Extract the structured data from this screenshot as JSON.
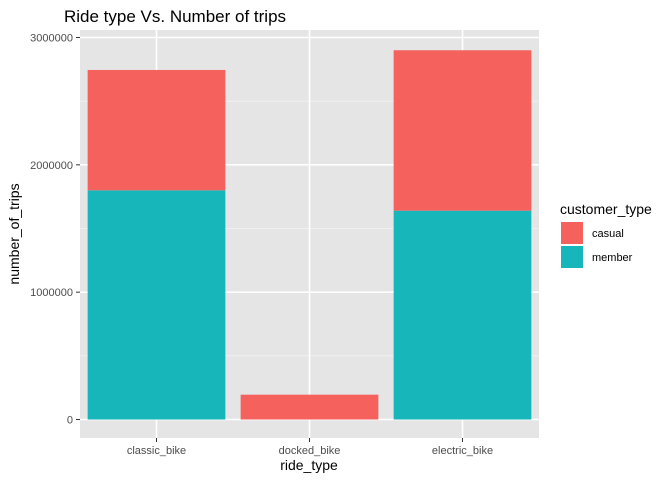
{
  "chart_data": {
    "type": "bar",
    "stacked": true,
    "title": "Ride type Vs. Number of trips",
    "xlabel": "ride_type",
    "ylabel": "number_of_trips",
    "categories": [
      "classic_bike",
      "docked_bike",
      "electric_bike"
    ],
    "series": [
      {
        "name": "member",
        "values": [
          1800000,
          0,
          1640000
        ],
        "color": "#17b6bb"
      },
      {
        "name": "casual",
        "values": [
          945000,
          195000,
          1260000
        ],
        "color": "#f5625d"
      }
    ],
    "ylim": [
      0,
      3000000
    ],
    "yticks": [
      0,
      1000000,
      2000000,
      3000000
    ],
    "ytick_labels": [
      "0",
      "1000000",
      "2000000",
      "3000000"
    ],
    "grid": true,
    "panel_color": "#e5e5e5",
    "legend": {
      "title": "customer_type",
      "placement": "right",
      "entries": [
        {
          "label": "casual",
          "color": "#f5625d"
        },
        {
          "label": "member",
          "color": "#17b6bb"
        }
      ]
    }
  }
}
